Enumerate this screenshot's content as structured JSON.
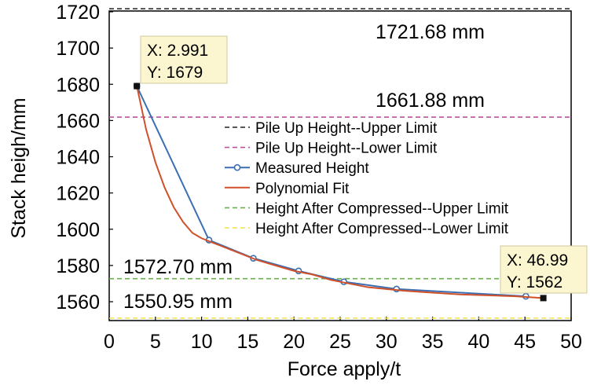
{
  "chart_data": {
    "type": "line",
    "xlabel": "Force apply/t",
    "ylabel": "Stack heigh/mm",
    "xlim": [
      0,
      50
    ],
    "ylim": [
      1550,
      1720
    ],
    "x_ticks": [
      0,
      5,
      10,
      15,
      20,
      25,
      30,
      35,
      40,
      45,
      50
    ],
    "y_ticks": [
      1560,
      1580,
      1600,
      1620,
      1640,
      1660,
      1680,
      1700,
      1720
    ],
    "grid": false,
    "legend_position": "center",
    "series": [
      {
        "name": "Pile Up Height--Upper Limit",
        "style": "dashed",
        "color": "#222222",
        "y": 1721.68
      },
      {
        "name": "Pile Up Height--Lower Limit",
        "style": "dashed",
        "color": "#c0509b",
        "y": 1661.88
      },
      {
        "name": "Measured Height",
        "style": "line-marker",
        "color": "#3b6fb2",
        "x": [
          2.991,
          10.8,
          15.6,
          20.5,
          25.4,
          31.1,
          45.1
        ],
        "y": [
          1679,
          1594,
          1584,
          1577,
          1571,
          1567,
          1563
        ]
      },
      {
        "name": "Polynomial Fit",
        "style": "line",
        "color": "#d0502a",
        "x": [
          2.991,
          4,
          5,
          6,
          7,
          8,
          9,
          10,
          11,
          12,
          14,
          16,
          18,
          20,
          22,
          24,
          26,
          28,
          30,
          32,
          35,
          38,
          41,
          44,
          46.99
        ],
        "y": [
          1679,
          1655,
          1637,
          1623,
          1612,
          1604,
          1598,
          1595,
          1593,
          1591,
          1587,
          1583,
          1580,
          1577,
          1575,
          1572,
          1570,
          1568,
          1567,
          1566,
          1565,
          1564,
          1563.5,
          1563,
          1562
        ]
      },
      {
        "name": "Height After Compressed--Upper Limit",
        "style": "dashed",
        "color": "#6ab04c",
        "y": 1572.7
      },
      {
        "name": "Height After Compressed--Lower Limit",
        "style": "dashed",
        "color": "#f2e24a",
        "y": 1550.95
      }
    ],
    "annotations": {
      "upper_pile": "1721.68 mm",
      "lower_pile": "1661.88 mm",
      "upper_comp": "1572.70 mm",
      "lower_comp": "1550.95 mm"
    },
    "tooltips": [
      {
        "x": 2.991,
        "y": 1679,
        "line1": "X: 2.991",
        "line2": "Y: 1679"
      },
      {
        "x": 46.99,
        "y": 1562,
        "line1": "X: 46.99",
        "line2": "Y: 1562"
      }
    ]
  }
}
